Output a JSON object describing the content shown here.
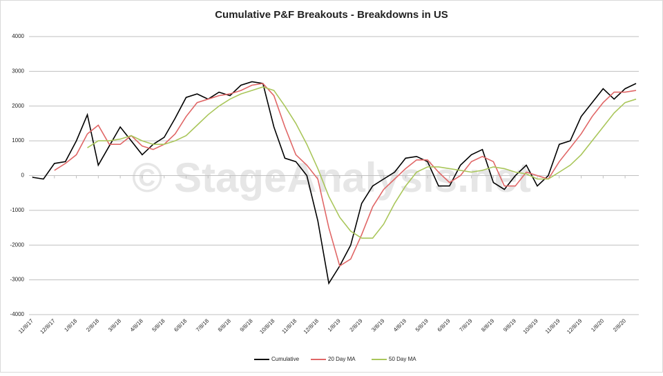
{
  "chart_data": {
    "type": "line",
    "title": "Cumulative P&F Breakouts - Breakdowns in US",
    "watermark": "© StageAnalysis.net",
    "categories": [
      "11/8/17",
      null,
      "12/8/17",
      null,
      "1/8/18",
      null,
      "2/8/18",
      null,
      "3/8/18",
      null,
      "4/8/18",
      null,
      "5/8/18",
      null,
      "6/8/18",
      null,
      "7/8/18",
      null,
      "8/8/18",
      null,
      "9/8/18",
      null,
      "10/8/18",
      null,
      "11/8/18",
      null,
      "12/8/18",
      null,
      "1/8/19",
      null,
      "2/8/19",
      null,
      "3/8/19",
      null,
      "4/8/19",
      null,
      "5/8/19",
      null,
      "6/8/19",
      null,
      "7/8/19",
      null,
      "8/8/19",
      null,
      "9/8/19",
      null,
      "10/8/19",
      null,
      "11/8/19",
      null,
      "12/8/19",
      null,
      "1/8/20",
      null,
      "2/8/20",
      null
    ],
    "series": [
      {
        "name": "Cumulative",
        "color": "#000000",
        "values": [
          -50,
          -100,
          350,
          400,
          1000,
          1750,
          300,
          850,
          1400,
          1000,
          600,
          900,
          1100,
          1650,
          2250,
          2350,
          2200,
          2400,
          2300,
          2600,
          2700,
          2650,
          1400,
          500,
          400,
          0,
          -1300,
          -3100,
          -2600,
          -2000,
          -800,
          -300,
          -100,
          100,
          500,
          550,
          400,
          -300,
          -300,
          300,
          600,
          750,
          -200,
          -400,
          0,
          300,
          -300,
          0,
          900,
          1000,
          1700,
          2100,
          2500,
          2200,
          2500,
          2650
        ]
      },
      {
        "name": "20 Day MA",
        "color": "#e06666",
        "values": [
          null,
          null,
          150,
          350,
          600,
          1200,
          1450,
          900,
          900,
          1150,
          850,
          750,
          900,
          1200,
          1700,
          2100,
          2200,
          2300,
          2350,
          2450,
          2600,
          2650,
          2300,
          1400,
          600,
          300,
          -100,
          -1500,
          -2600,
          -2400,
          -1700,
          -900,
          -400,
          -100,
          200,
          450,
          450,
          100,
          -200,
          0,
          400,
          550,
          400,
          -300,
          -300,
          100,
          0,
          -100,
          400,
          800,
          1200,
          1700,
          2100,
          2400,
          2400,
          2450
        ]
      },
      {
        "name": "50 Day MA",
        "color": "#a9c65a",
        "values": [
          null,
          null,
          null,
          null,
          null,
          800,
          1000,
          1000,
          1050,
          1150,
          1000,
          900,
          900,
          1000,
          1150,
          1450,
          1750,
          2000,
          2200,
          2350,
          2450,
          2550,
          2450,
          2000,
          1500,
          900,
          200,
          -600,
          -1200,
          -1600,
          -1800,
          -1800,
          -1400,
          -800,
          -300,
          100,
          250,
          250,
          200,
          150,
          100,
          150,
          250,
          200,
          100,
          50,
          -100,
          -100,
          100,
          300,
          600,
          1000,
          1400,
          1800,
          2100,
          2200
        ]
      }
    ],
    "ylim": [
      -4000,
      4000
    ],
    "yticks": [
      -4000,
      -3000,
      -2000,
      -1000,
      0,
      1000,
      2000,
      3000,
      4000
    ],
    "grid": true,
    "legend": "bottom"
  }
}
